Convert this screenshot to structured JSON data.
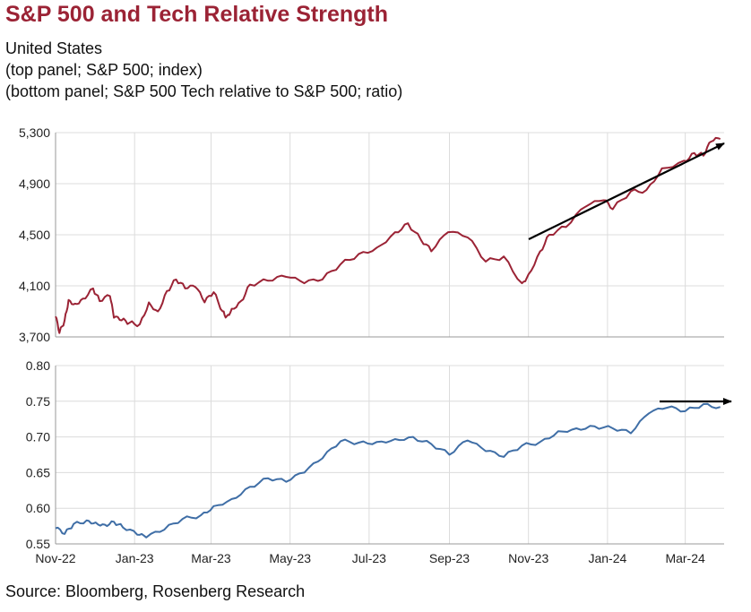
{
  "title": "S&P 500 and Tech Relative Strength",
  "subtitle": [
    "United States",
    "(top panel; S&P 500; index)",
    "(bottom panel; S&P 500 Tech relative to S&P 500; ratio)"
  ],
  "source": "Source: Bloomberg, Rosenberg Research",
  "colors": {
    "title": "#9b2335",
    "top_series": "#9b2335",
    "bottom_series": "#3f6ea6",
    "grid": "#dcdcdc",
    "arrow": "#000000"
  },
  "chart_data": [
    {
      "type": "line",
      "panel": "top",
      "x_ticks": [
        "Nov-22",
        "Jan-23",
        "Mar-23",
        "May-23",
        "Jul-23",
        "Sep-23",
        "Nov-23",
        "Jan-24",
        "Mar-24"
      ],
      "y_ticks": [
        "3,700",
        "4,100",
        "4,500",
        "4,900",
        "5,300"
      ],
      "ylim": [
        3700,
        5300
      ],
      "xlim": [
        "2022-11-01",
        "2024-03-31"
      ],
      "grid": "vertical and horizontal",
      "annotation": "upward arrow from early Nov-23 to late Mar-24",
      "series": [
        {
          "x": [
            "2022-11-01",
            "2022-11-04",
            "2022-11-08",
            "2022-11-11",
            "2022-11-16",
            "2022-11-22",
            "2022-11-30",
            "2022-12-05",
            "2022-12-13",
            "2022-12-16",
            "2022-12-22",
            "2022-12-28",
            "2023-01-05",
            "2023-01-12",
            "2023-01-19",
            "2023-01-26",
            "2023-02-02",
            "2023-02-09",
            "2023-02-17",
            "2023-02-24",
            "2023-03-03",
            "2023-03-10",
            "2023-03-13",
            "2023-03-17",
            "2023-03-24",
            "2023-03-31",
            "2023-04-14",
            "2023-04-28",
            "2023-05-12",
            "2023-05-26",
            "2023-06-09",
            "2023-06-23",
            "2023-07-07",
            "2023-07-21",
            "2023-07-31",
            "2023-08-10",
            "2023-08-18",
            "2023-08-31",
            "2023-09-15",
            "2023-09-29",
            "2023-10-13",
            "2023-10-27",
            "2023-11-01",
            "2023-11-10",
            "2023-11-17",
            "2023-11-30",
            "2023-12-15",
            "2023-12-29",
            "2024-01-05",
            "2024-01-19",
            "2024-01-31",
            "2024-02-12",
            "2024-02-29",
            "2024-03-08",
            "2024-03-15",
            "2024-03-21",
            "2024-03-28"
          ],
          "y": [
            3860,
            3730,
            3830,
            3990,
            3960,
            4000,
            4080,
            3980,
            4020,
            3850,
            3830,
            3810,
            3800,
            3970,
            3900,
            4060,
            4150,
            4080,
            4090,
            3970,
            4050,
            3900,
            3860,
            3920,
            3980,
            4110,
            4140,
            4170,
            4120,
            4150,
            4270,
            4350,
            4400,
            4520,
            4590,
            4460,
            4370,
            4520,
            4480,
            4290,
            4330,
            4120,
            4190,
            4370,
            4500,
            4560,
            4720,
            4770,
            4700,
            4840,
            4850,
            5020,
            5080,
            5140,
            5120,
            5230,
            5250
          ]
        }
      ]
    },
    {
      "type": "line",
      "panel": "bottom",
      "x_ticks": [
        "Nov-22",
        "Jan-23",
        "Mar-23",
        "May-23",
        "Jul-23",
        "Sep-23",
        "Nov-23",
        "Jan-24",
        "Mar-24"
      ],
      "y_ticks": [
        "0.55",
        "0.60",
        "0.65",
        "0.70",
        "0.75",
        "0.80"
      ],
      "ylim": [
        0.55,
        0.8
      ],
      "xlim": [
        "2022-11-01",
        "2024-03-31"
      ],
      "grid": "vertical and horizontal",
      "annotation": "flat arrow from early Feb-24 to end of Mar-24",
      "series": [
        {
          "x": [
            "2022-11-01",
            "2022-11-08",
            "2022-11-15",
            "2022-11-25",
            "2022-12-02",
            "2022-12-09",
            "2022-12-16",
            "2022-12-23",
            "2023-01-03",
            "2023-01-10",
            "2023-01-24",
            "2023-02-07",
            "2023-02-21",
            "2023-03-03",
            "2023-03-17",
            "2023-03-31",
            "2023-04-14",
            "2023-04-28",
            "2023-05-12",
            "2023-05-26",
            "2023-06-09",
            "2023-06-23",
            "2023-07-07",
            "2023-07-21",
            "2023-08-04",
            "2023-08-18",
            "2023-09-01",
            "2023-09-15",
            "2023-09-29",
            "2023-10-13",
            "2023-10-27",
            "2023-11-10",
            "2023-11-24",
            "2023-12-08",
            "2023-12-22",
            "2024-01-05",
            "2024-01-19",
            "2024-02-02",
            "2024-02-16",
            "2024-03-01",
            "2024-03-15",
            "2024-03-28"
          ],
          "y": [
            0.572,
            0.564,
            0.578,
            0.583,
            0.58,
            0.577,
            0.581,
            0.573,
            0.563,
            0.559,
            0.57,
            0.585,
            0.59,
            0.603,
            0.613,
            0.63,
            0.642,
            0.637,
            0.65,
            0.67,
            0.694,
            0.692,
            0.693,
            0.697,
            0.7,
            0.69,
            0.675,
            0.695,
            0.68,
            0.672,
            0.688,
            0.693,
            0.708,
            0.712,
            0.715,
            0.712,
            0.705,
            0.733,
            0.741,
            0.736,
            0.746,
            0.742
          ]
        }
      ]
    }
  ]
}
